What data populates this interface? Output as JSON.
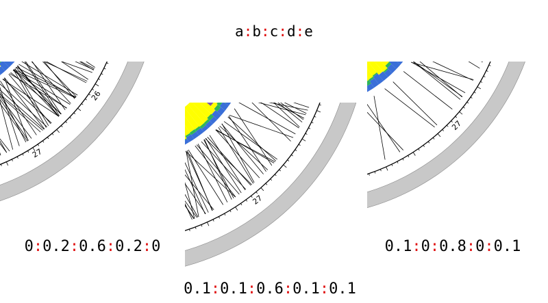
{
  "colors": {
    "separator": "#e01010",
    "yellow": "#ffff00",
    "blue": "#3a6fd8",
    "green": "#2db55a",
    "purple": "#7b5aa8",
    "grey_band": "#c8c8c8"
  },
  "title_parts": [
    "a",
    "b",
    "c",
    "d",
    "e"
  ],
  "panels": [
    {
      "id": "panel1",
      "ratio_parts": [
        "0",
        "0.2",
        "0.6",
        "0.2",
        "0"
      ],
      "labels": [
        "26",
        "27"
      ]
    },
    {
      "id": "panel2",
      "ratio_parts": [
        "0.1",
        "0.1",
        "0.6",
        "0.1",
        "0.1"
      ],
      "labels": [
        "27"
      ]
    },
    {
      "id": "panel3",
      "ratio_parts": [
        "0.1",
        "0",
        "0.8",
        "0",
        "0.1"
      ],
      "labels": [
        "27"
      ]
    }
  ]
}
